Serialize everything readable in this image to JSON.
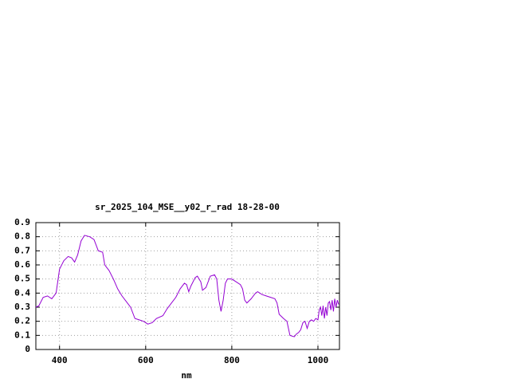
{
  "chart_data": {
    "type": "line",
    "title": "sr_2025_104_MSE__y02_r_rad 18-28-00",
    "xlabel": "nm",
    "xlim": [
      345,
      1050
    ],
    "xticks": [
      400,
      600,
      800,
      1000
    ],
    "ylim": [
      0,
      0.9
    ],
    "yticks": [
      0,
      0.1,
      0.2,
      0.3,
      0.4,
      0.5,
      0.6,
      0.7,
      0.8,
      0.9
    ],
    "grid": true,
    "series": [
      {
        "color": "#9400d3",
        "x": [
          345,
          352,
          362,
          372,
          382,
          392,
          400,
          410,
          420,
          428,
          435,
          442,
          450,
          458,
          470,
          480,
          490,
          500,
          505,
          515,
          525,
          535,
          545,
          555,
          565,
          575,
          585,
          595,
          605,
          615,
          625,
          640,
          650,
          660,
          670,
          680,
          690,
          695,
          700,
          705,
          715,
          720,
          728,
          732,
          740,
          750,
          760,
          765,
          770,
          775,
          780,
          785,
          790,
          800,
          810,
          820,
          825,
          830,
          835,
          845,
          855,
          860,
          870,
          880,
          890,
          900,
          905,
          910,
          920,
          928,
          935,
          945,
          950,
          955,
          960,
          965,
          970,
          975,
          980,
          985,
          990,
          995,
          1000,
          1003,
          1006,
          1009,
          1012,
          1015,
          1018,
          1021,
          1024,
          1027,
          1030,
          1033,
          1036,
          1039,
          1042,
          1045,
          1048
        ],
        "values": [
          0.3,
          0.31,
          0.37,
          0.38,
          0.36,
          0.4,
          0.57,
          0.63,
          0.66,
          0.65,
          0.62,
          0.67,
          0.77,
          0.81,
          0.8,
          0.78,
          0.7,
          0.69,
          0.6,
          0.56,
          0.5,
          0.43,
          0.38,
          0.34,
          0.3,
          0.22,
          0.21,
          0.2,
          0.18,
          0.19,
          0.22,
          0.24,
          0.29,
          0.33,
          0.37,
          0.43,
          0.47,
          0.46,
          0.41,
          0.45,
          0.51,
          0.52,
          0.48,
          0.42,
          0.44,
          0.52,
          0.53,
          0.5,
          0.35,
          0.27,
          0.35,
          0.47,
          0.5,
          0.5,
          0.48,
          0.46,
          0.43,
          0.35,
          0.33,
          0.36,
          0.4,
          0.41,
          0.39,
          0.38,
          0.37,
          0.36,
          0.33,
          0.25,
          0.22,
          0.2,
          0.1,
          0.09,
          0.11,
          0.12,
          0.14,
          0.19,
          0.2,
          0.15,
          0.2,
          0.21,
          0.2,
          0.22,
          0.21,
          0.28,
          0.3,
          0.24,
          0.31,
          0.22,
          0.3,
          0.24,
          0.33,
          0.34,
          0.28,
          0.35,
          0.27,
          0.36,
          0.3,
          0.35,
          0.32
        ]
      }
    ]
  }
}
